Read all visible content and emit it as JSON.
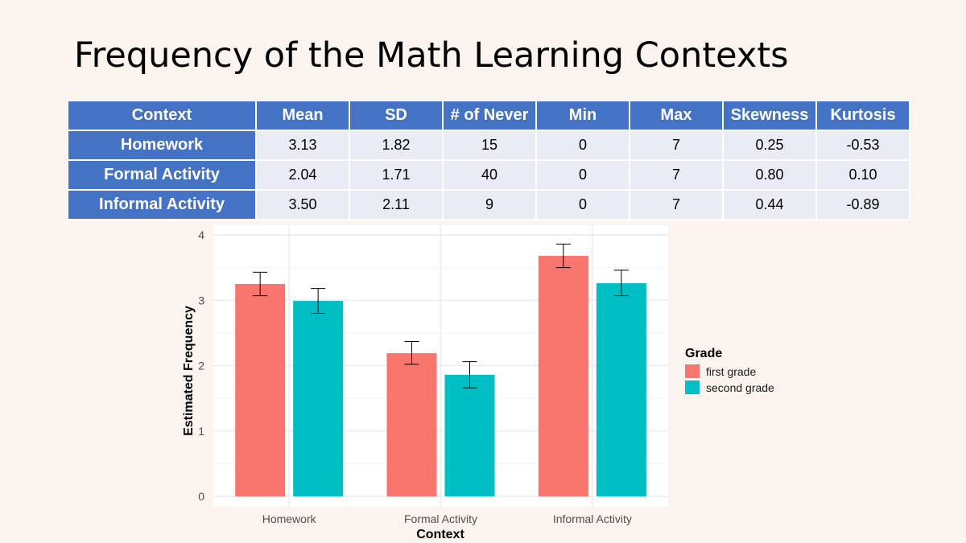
{
  "slide": {
    "title": "Frequency of the Math Learning Contexts"
  },
  "table": {
    "headers": [
      "Context",
      "Mean",
      "SD",
      "# of Never",
      "Min",
      "Max",
      "Skewness",
      "Kurtosis"
    ],
    "rows": [
      {
        "context": "Homework",
        "values": [
          "3.13",
          "1.82",
          "15",
          "0",
          "7",
          "0.25",
          "-0.53"
        ]
      },
      {
        "context": "Formal Activity",
        "values": [
          "2.04",
          "1.71",
          "40",
          "0",
          "7",
          "0.80",
          "0.10"
        ]
      },
      {
        "context": "Informal Activity",
        "values": [
          "3.50",
          "2.11",
          "9",
          "0",
          "7",
          "0.44",
          "-0.89"
        ]
      }
    ]
  },
  "chart_data": {
    "type": "bar",
    "title": "",
    "xlabel": "Context",
    "ylabel": "Estimated Frequency",
    "categories": [
      "Homework",
      "Formal Activity",
      "Informal Activity"
    ],
    "ylim": [
      0,
      4
    ],
    "yticks": [
      "0",
      "1",
      "2",
      "3",
      "4"
    ],
    "grid": true,
    "legend": {
      "title": "Grade",
      "position": "right"
    },
    "series": [
      {
        "name": "first grade",
        "color": "#f8766d",
        "values": [
          3.25,
          2.19,
          3.68
        ],
        "err_low": [
          3.07,
          2.02,
          3.5
        ],
        "err_high": [
          3.43,
          2.37,
          3.86
        ]
      },
      {
        "name": "second grade",
        "color": "#00bfc4",
        "values": [
          2.99,
          1.86,
          3.26
        ],
        "err_low": [
          2.8,
          1.66,
          3.07
        ],
        "err_high": [
          3.18,
          2.06,
          3.46
        ]
      }
    ]
  }
}
